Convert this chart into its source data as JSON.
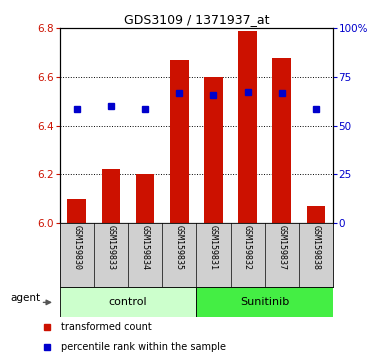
{
  "title": "GDS3109 / 1371937_at",
  "samples": [
    "GSM159830",
    "GSM159833",
    "GSM159834",
    "GSM159835",
    "GSM159831",
    "GSM159832",
    "GSM159837",
    "GSM159838"
  ],
  "bar_values": [
    6.1,
    6.22,
    6.2,
    6.67,
    6.6,
    6.79,
    6.68,
    6.07
  ],
  "blue_dot_values": [
    6.47,
    6.48,
    6.47,
    6.535,
    6.525,
    6.54,
    6.535,
    6.47
  ],
  "bar_color": "#cc1100",
  "dot_color": "#0000cc",
  "base_value": 6.0,
  "ylim_left": [
    6.0,
    6.8
  ],
  "ylim_right": [
    0,
    100
  ],
  "yticks_left": [
    6.0,
    6.2,
    6.4,
    6.6,
    6.8
  ],
  "yticks_right": [
    0,
    25,
    50,
    75,
    100
  ],
  "ytick_labels_right": [
    "0",
    "25",
    "50",
    "75",
    "100%"
  ],
  "grid_values": [
    6.2,
    6.4,
    6.6
  ],
  "control_label": "control",
  "sunitinib_label": "Sunitinib",
  "agent_label": "agent",
  "legend_bar_label": "transformed count",
  "legend_dot_label": "percentile rank within the sample",
  "control_bg": "#ccffcc",
  "sunitinib_bg": "#44ee44",
  "sample_bg": "#d0d0d0",
  "plot_bg": "#ffffff",
  "title_color": "#000000",
  "left_tick_color": "#cc1100",
  "right_tick_color": "#0000cc",
  "n_control": 4,
  "n_sunitinib": 4
}
